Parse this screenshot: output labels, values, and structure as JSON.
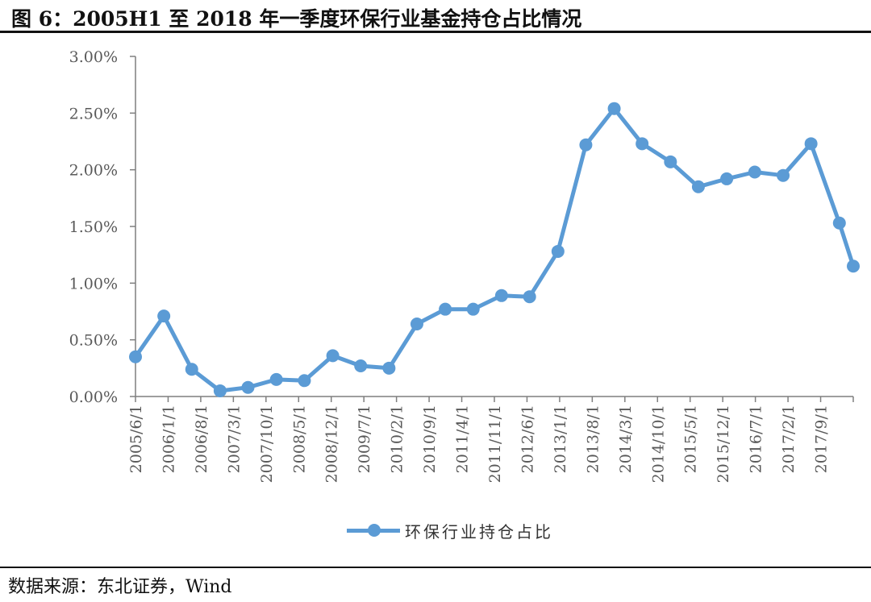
{
  "figure": {
    "title": "图 6：2005H1 至 2018 年一季度环保行业基金持仓占比情况",
    "source": "数据来源：东北证券，Wind"
  },
  "colors": {
    "series": "#5b9bd5",
    "axis": "#7f7f7f",
    "text": "#595959"
  },
  "chart_data": {
    "type": "line",
    "title": "",
    "xlabel": "",
    "ylabel": "",
    "ylim": [
      0,
      0.03
    ],
    "y_ticks": [
      "0.00%",
      "0.50%",
      "1.00%",
      "1.50%",
      "2.00%",
      "2.50%",
      "3.00%"
    ],
    "x_tick_labels": [
      "2005/6/1",
      "2006/1/1",
      "2006/8/1",
      "2007/3/1",
      "2007/10/1",
      "2008/5/1",
      "2008/12/1",
      "2009/7/1",
      "2010/2/1",
      "2010/9/1",
      "2011/4/1",
      "2011/11/1",
      "2012/6/1",
      "2013/1/1",
      "2013/8/1",
      "2014/3/1",
      "2014/10/1",
      "2015/5/1",
      "2015/12/1",
      "2016/7/1",
      "2017/2/1",
      "2017/9/1"
    ],
    "grid": false,
    "legend_position": "bottom",
    "series": [
      {
        "name": "环保行业持仓占比",
        "x": [
          "2005/6/30",
          "2005/12/31",
          "2006/6/30",
          "2006/12/31",
          "2007/6/30",
          "2007/12/31",
          "2008/6/30",
          "2008/12/31",
          "2009/6/30",
          "2009/12/31",
          "2010/6/30",
          "2010/12/31",
          "2011/6/30",
          "2011/12/31",
          "2012/6/30",
          "2012/12/31",
          "2013/6/30",
          "2013/12/31",
          "2014/6/30",
          "2014/12/31",
          "2015/6/30",
          "2015/12/31",
          "2016/6/30",
          "2016/12/31",
          "2017/6/30",
          "2017/12/31",
          "2018/3/31"
        ],
        "values": [
          0.0035,
          0.0071,
          0.0024,
          0.0005,
          0.0008,
          0.0015,
          0.0014,
          0.0036,
          0.0027,
          0.0025,
          0.0064,
          0.0077,
          0.0077,
          0.0089,
          0.0088,
          0.0128,
          0.0222,
          0.0254,
          0.0223,
          0.0207,
          0.0185,
          0.0192,
          0.0198,
          0.0195,
          0.0223,
          0.0153,
          0.0115
        ]
      }
    ]
  }
}
